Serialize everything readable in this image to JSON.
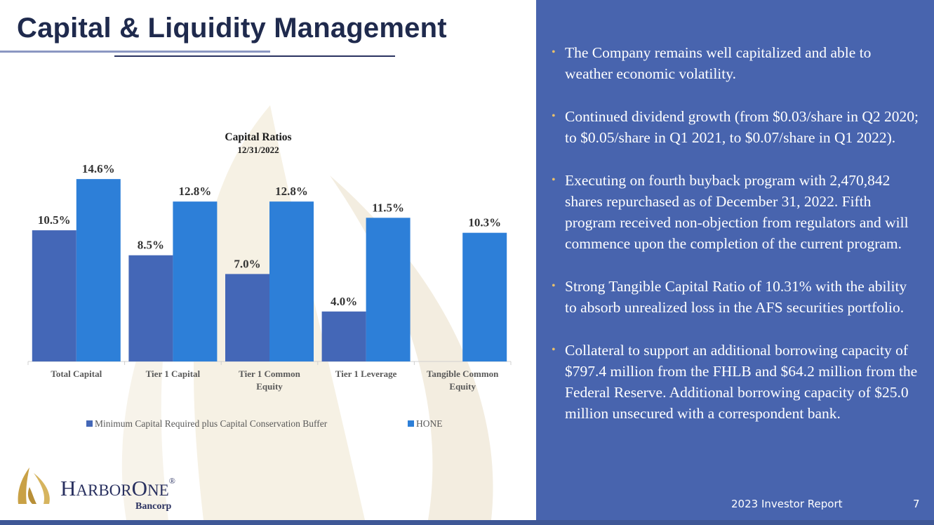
{
  "slide": {
    "title": "Capital & Liquidity Management",
    "footer": "2023 Investor Report",
    "page_number": "7"
  },
  "logo": {
    "name_h": "H",
    "name_arbor": "ARBOR",
    "name_o": "O",
    "name_ne": "NE",
    "registered": "®",
    "sub": "Bancorp"
  },
  "bullets": [
    "The Company remains well capitalized and able to weather economic volatility.",
    "Continued dividend growth (from $0.03/share in Q2 2020; to $0.05/share in Q1 2021, to $0.07/share in Q1 2022).",
    "Executing on fourth buyback program with 2,470,842 shares repurchased as of December 31, 2022.  Fifth program received non-objection from regulators and will commence upon the completion of the current program.",
    "Strong Tangible Capital Ratio of 10.31% with the ability to absorb unrealized loss in the AFS securities portfolio.",
    "Collateral to support an additional borrowing capacity of $797.4 million from the FHLB and $64.2 million from the Federal Reserve. Additional borrowing capacity of $25.0 million unsecured with a correspondent bank."
  ],
  "colors": {
    "series_min": "#4467b7",
    "series_hone": "#2d7fd8",
    "panel": "#4864ae",
    "bullet_dot": "#e9c06a"
  },
  "chart_data": {
    "type": "bar",
    "title": "Capital Ratios",
    "subtitle": "12/31/2022",
    "categories": [
      [
        "Total Capital"
      ],
      [
        "Tier 1 Capital"
      ],
      [
        "Tier 1 Common",
        "Equity"
      ],
      [
        "Tier 1 Leverage"
      ],
      [
        "Tangible Common",
        "Equity"
      ]
    ],
    "series": [
      {
        "name": "Minimum Capital Required plus Capital Conservation Buffer",
        "values": [
          10.5,
          8.5,
          7.0,
          4.0,
          null
        ],
        "labels": [
          "10.5%",
          "8.5%",
          "7.0%",
          "4.0%",
          ""
        ]
      },
      {
        "name": "HONE",
        "values": [
          14.6,
          12.8,
          12.8,
          11.5,
          10.3
        ],
        "labels": [
          "14.6%",
          "12.8%",
          "12.8%",
          "11.5%",
          "10.3%"
        ]
      }
    ],
    "ylim": [
      0,
      16
    ],
    "grid": false,
    "legend": "bottom"
  }
}
